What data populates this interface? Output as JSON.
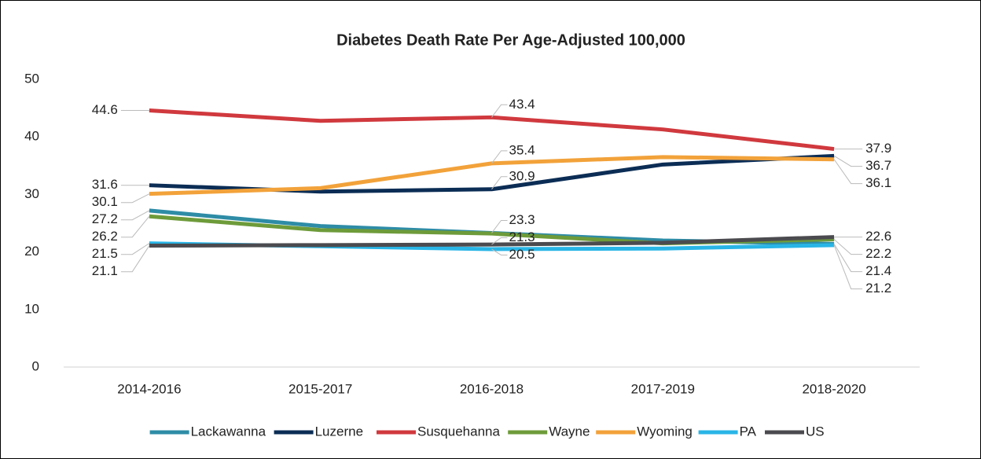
{
  "chart_data": {
    "type": "line",
    "title": "Diabetes Death Rate Per Age-Adjusted 100,000",
    "categories": [
      "2014-2016",
      "2015-2017",
      "2016-2018",
      "2017-2019",
      "2018-2020"
    ],
    "ylim": [
      0,
      50
    ],
    "yticks": [
      0,
      10,
      20,
      30,
      40,
      50
    ],
    "grid": false,
    "legend": "bottom",
    "series": [
      {
        "name": "Lackawanna",
        "color": "#2e8ca6",
        "values": [
          27.2,
          24.5,
          23.3,
          22.0,
          21.4
        ],
        "value_labels": [
          "27.2",
          null,
          "23.3",
          null,
          "21.4"
        ]
      },
      {
        "name": "Luzerne",
        "color": "#0b2d55",
        "values": [
          31.6,
          30.5,
          30.9,
          35.2,
          36.7
        ],
        "value_labels": [
          "31.6",
          null,
          "30.9",
          null,
          "36.7"
        ]
      },
      {
        "name": "Susquehanna",
        "color": "#d0393e",
        "values": [
          44.6,
          42.8,
          43.4,
          41.3,
          37.9
        ],
        "value_labels": [
          "44.6",
          null,
          "43.4",
          null,
          "37.9"
        ]
      },
      {
        "name": "Wayne",
        "color": "#6e9b3a",
        "values": [
          26.2,
          23.8,
          23.2,
          21.5,
          22.2
        ],
        "value_labels": [
          "26.2",
          null,
          null,
          null,
          "22.2"
        ]
      },
      {
        "name": "Wyoming",
        "color": "#f2a23a",
        "values": [
          30.1,
          31.1,
          35.4,
          36.5,
          36.1
        ],
        "value_labels": [
          "30.1",
          null,
          "35.4",
          null,
          "36.1"
        ]
      },
      {
        "name": "PA",
        "color": "#29b5e6",
        "values": [
          21.5,
          21.0,
          20.5,
          20.6,
          21.2
        ],
        "value_labels": [
          "21.5",
          null,
          "20.5",
          null,
          "21.2"
        ]
      },
      {
        "name": "US",
        "color": "#4b4b4f",
        "values": [
          21.1,
          21.2,
          21.3,
          21.6,
          22.6
        ],
        "value_labels": [
          "21.1",
          null,
          "21.3",
          null,
          "22.6"
        ]
      }
    ]
  }
}
